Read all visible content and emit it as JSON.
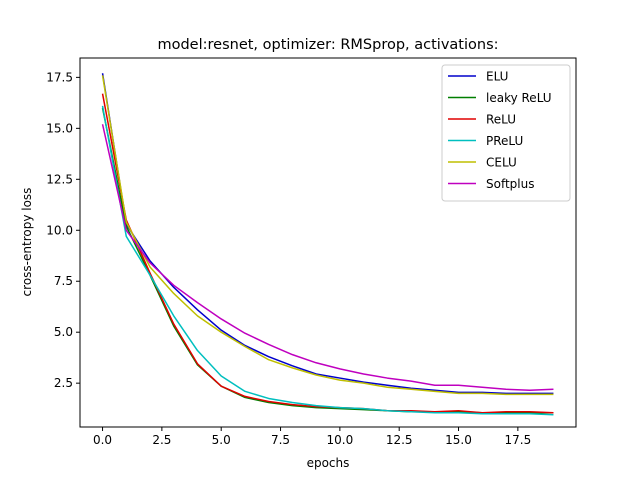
{
  "chart_data": {
    "type": "line",
    "title": "model:resnet, optimizer: RMSprop, activations:",
    "xlabel": "epochs",
    "ylabel": "cross-entropy loss",
    "xlim": [
      -0.95,
      19.95
    ],
    "ylim": [
      0.35,
      18.45
    ],
    "xticks": [
      0.0,
      2.5,
      5.0,
      7.5,
      10.0,
      12.5,
      15.0,
      17.5
    ],
    "xtick_labels": [
      "0.0",
      "2.5",
      "5.0",
      "7.5",
      "10.0",
      "12.5",
      "15.0",
      "17.5"
    ],
    "yticks": [
      2.5,
      5.0,
      7.5,
      10.0,
      12.5,
      15.0,
      17.5
    ],
    "ytick_labels": [
      "2.5",
      "5.0",
      "7.5",
      "10.0",
      "12.5",
      "15.0",
      "17.5"
    ],
    "grid": false,
    "legend_position": "top-right",
    "x": [
      0,
      1,
      2,
      3,
      4,
      5,
      6,
      7,
      8,
      9,
      10,
      11,
      12,
      13,
      14,
      15,
      16,
      17,
      18,
      19
    ],
    "series": [
      {
        "name": "ELU",
        "color": "#0000cc",
        "values": [
          17.7,
          10.3,
          8.5,
          7.2,
          6.1,
          5.1,
          4.35,
          3.8,
          3.35,
          2.95,
          2.75,
          2.55,
          2.4,
          2.25,
          2.15,
          2.05,
          2.05,
          2.0,
          2.0,
          2.0
        ]
      },
      {
        "name": "leaky ReLU",
        "color": "#007f00",
        "values": [
          16.0,
          10.2,
          7.8,
          5.3,
          3.4,
          2.35,
          1.8,
          1.55,
          1.4,
          1.3,
          1.25,
          1.2,
          1.15,
          1.1,
          1.1,
          1.1,
          1.05,
          1.05,
          1.05,
          1.05
        ]
      },
      {
        "name": "ReLU",
        "color": "#e00000",
        "values": [
          16.7,
          10.5,
          7.9,
          5.4,
          3.45,
          2.35,
          1.85,
          1.6,
          1.45,
          1.35,
          1.3,
          1.25,
          1.15,
          1.15,
          1.1,
          1.15,
          1.05,
          1.1,
          1.1,
          1.05
        ]
      },
      {
        "name": "PReLU",
        "color": "#00bfbf",
        "values": [
          16.1,
          9.7,
          7.8,
          5.8,
          4.1,
          2.85,
          2.1,
          1.75,
          1.55,
          1.4,
          1.3,
          1.25,
          1.15,
          1.1,
          1.05,
          1.05,
          1.0,
          1.0,
          1.0,
          0.95
        ]
      },
      {
        "name": "CELU",
        "color": "#bfbf00",
        "values": [
          17.6,
          10.4,
          8.2,
          6.9,
          5.8,
          5.0,
          4.3,
          3.65,
          3.25,
          2.9,
          2.65,
          2.5,
          2.3,
          2.2,
          2.1,
          2.0,
          2.0,
          1.95,
          1.95,
          1.95
        ]
      },
      {
        "name": "Softplus",
        "color": "#bf00bf",
        "values": [
          15.2,
          10.0,
          8.4,
          7.3,
          6.45,
          5.65,
          4.95,
          4.4,
          3.9,
          3.5,
          3.2,
          2.95,
          2.75,
          2.6,
          2.4,
          2.4,
          2.3,
          2.2,
          2.15,
          2.2
        ]
      }
    ]
  }
}
